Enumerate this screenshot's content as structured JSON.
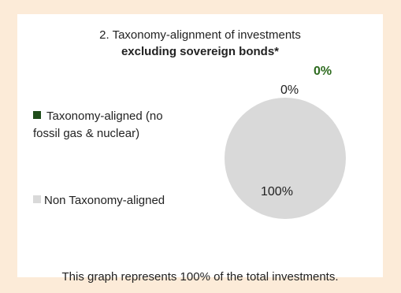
{
  "chart_data": {
    "type": "pie",
    "title": "2. Taxonomy-alignment of investments",
    "subtitle": "excluding sovereign bonds*",
    "slices": [
      {
        "name": "Taxonomy-aligned (no fossil gas & nuclear)",
        "value": 0,
        "label": "0%",
        "color": "#1f4d1a"
      },
      {
        "name": "Non Taxonomy-aligned",
        "value": 100,
        "label": "100%",
        "color": "#d9d9d9"
      }
    ],
    "extra_label": "0%",
    "legend_placement": "left"
  },
  "legend": {
    "aligned_line1": "Taxonomy-aligned (no",
    "aligned_line2": "fossil gas & nuclear)",
    "non_aligned": "Non Taxonomy-aligned"
  },
  "footer": "This graph represents 100% of the total investments.",
  "colors": {
    "background": "#fcebd8",
    "panel": "#ffffff",
    "aligned": "#1f4d1a",
    "non_aligned": "#d9d9d9",
    "bold_label": "#2e6b1f"
  }
}
